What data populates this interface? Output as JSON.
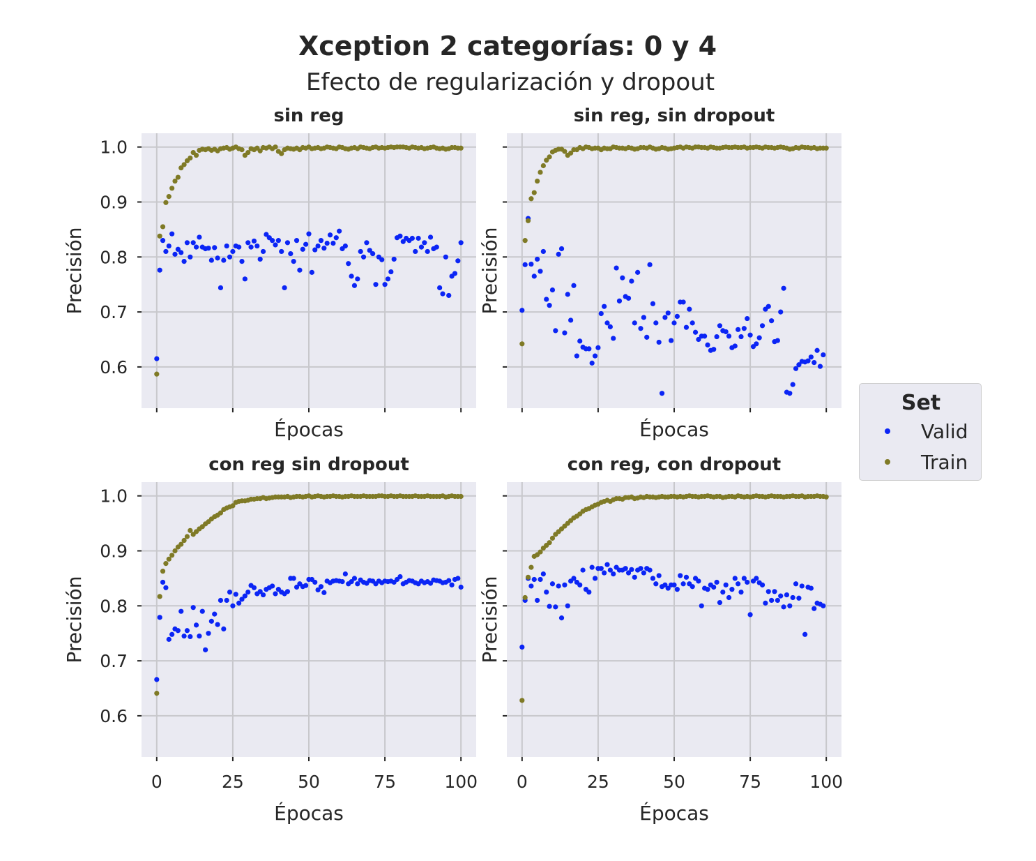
{
  "figure": {
    "title": "Xception 2 categorías: 0 y 4",
    "subtitle": "Efecto de regularización y dropout"
  },
  "legend": {
    "title": "Set",
    "items": [
      {
        "label": "Valid",
        "color": "#0b25f5"
      },
      {
        "label": "Train",
        "color": "#7f7a26"
      }
    ]
  },
  "chart_data": [
    {
      "type": "scatter",
      "title": "sin reg",
      "xlabel": "Épocas",
      "ylabel": "Precisión",
      "xlim": [
        -5,
        105
      ],
      "ylim": [
        0.525,
        1.025
      ],
      "xticks": [
        0,
        25,
        50,
        75,
        100
      ],
      "yticks": [
        0.6,
        0.7,
        0.8,
        0.9,
        1.0
      ],
      "grid": true,
      "series": [
        {
          "name": "Valid",
          "color": "#0b25f5",
          "values": [
            0.615,
            0.776,
            0.83,
            0.81,
            0.82,
            0.842,
            0.805,
            0.814,
            0.808,
            0.792,
            0.826,
            0.8,
            0.826,
            0.818,
            0.836,
            0.818,
            0.815,
            0.816,
            0.794,
            0.817,
            0.798,
            0.744,
            0.794,
            0.82,
            0.8,
            0.81,
            0.82,
            0.818,
            0.792,
            0.76,
            0.826,
            0.818,
            0.829,
            0.82,
            0.796,
            0.81,
            0.841,
            0.835,
            0.83,
            0.822,
            0.83,
            0.81,
            0.744,
            0.826,
            0.806,
            0.792,
            0.83,
            0.776,
            0.814,
            0.823,
            0.842,
            0.772,
            0.813,
            0.82,
            0.83,
            0.816,
            0.825,
            0.84,
            0.825,
            0.835,
            0.847,
            0.815,
            0.82,
            0.788,
            0.765,
            0.748,
            0.76,
            0.81,
            0.8,
            0.826,
            0.812,
            0.806,
            0.75,
            0.8,
            0.795,
            0.75,
            0.76,
            0.773,
            0.796,
            0.835,
            0.838,
            0.828,
            0.834,
            0.83,
            0.834,
            0.81,
            0.834,
            0.818,
            0.826,
            0.81,
            0.836,
            0.815,
            0.818,
            0.744,
            0.733,
            0.8,
            0.73,
            0.765,
            0.77,
            0.793,
            0.826
          ]
        },
        {
          "name": "Train",
          "color": "#7f7a26",
          "values": [
            0.587,
            0.838,
            0.855,
            0.899,
            0.91,
            0.925,
            0.938,
            0.945,
            0.962,
            0.968,
            0.975,
            0.98,
            0.99,
            0.985,
            0.994,
            0.996,
            0.995,
            0.997,
            0.994,
            0.996,
            0.993,
            0.997,
            0.998,
            0.999,
            0.996,
            0.998,
            1.0,
            0.997,
            0.995,
            0.985,
            0.99,
            0.997,
            0.995,
            0.998,
            0.993,
            0.999,
            0.998,
            1.0,
            0.997,
            1.0,
            0.992,
            0.988,
            0.995,
            0.998,
            0.997,
            0.996,
            0.998,
            0.995,
            0.999,
            0.998,
            1.0,
            0.997,
            0.998,
            0.999,
            0.997,
            0.998,
            1.0,
            0.999,
            0.998,
            0.997,
            1.0,
            0.999,
            0.997,
            0.996,
            0.998,
            0.999,
            0.997,
            1.0,
            0.999,
            0.998,
            0.997,
            0.999,
            1.0,
            0.998,
            0.999,
            0.998,
            0.999,
            1.0,
            0.999,
            1.0,
            1.0,
            1.0,
            0.999,
            0.998,
            1.0,
            0.999,
            0.998,
            0.999,
            0.997,
            0.998,
            0.999,
            1.0,
            0.998,
            0.997,
            0.998,
            0.996,
            0.997,
            0.999,
            0.999,
            0.998,
            0.998
          ]
        }
      ]
    },
    {
      "type": "scatter",
      "title": "sin reg, sin dropout",
      "xlabel": "Épocas",
      "ylabel": "Precisión",
      "xlim": [
        -5,
        105
      ],
      "ylim": [
        0.525,
        1.025
      ],
      "xticks": [
        0,
        25,
        50,
        75,
        100
      ],
      "yticks": [
        0.6,
        0.7,
        0.8,
        0.9,
        1.0
      ],
      "grid": true,
      "series": [
        {
          "name": "Valid",
          "color": "#0b25f5",
          "values": [
            0.703,
            0.786,
            0.87,
            0.787,
            0.765,
            0.796,
            0.774,
            0.81,
            0.723,
            0.712,
            0.74,
            0.666,
            0.805,
            0.815,
            0.662,
            0.732,
            0.685,
            0.748,
            0.62,
            0.647,
            0.636,
            0.633,
            0.633,
            0.607,
            0.62,
            0.635,
            0.697,
            0.71,
            0.68,
            0.673,
            0.652,
            0.78,
            0.72,
            0.762,
            0.728,
            0.725,
            0.756,
            0.68,
            0.772,
            0.67,
            0.69,
            0.654,
            0.786,
            0.715,
            0.68,
            0.645,
            0.552,
            0.69,
            0.698,
            0.648,
            0.68,
            0.692,
            0.718,
            0.718,
            0.672,
            0.705,
            0.68,
            0.663,
            0.65,
            0.656,
            0.656,
            0.64,
            0.63,
            0.632,
            0.655,
            0.675,
            0.666,
            0.664,
            0.656,
            0.635,
            0.638,
            0.668,
            0.655,
            0.67,
            0.688,
            0.658,
            0.637,
            0.642,
            0.653,
            0.675,
            0.705,
            0.71,
            0.684,
            0.646,
            0.648,
            0.7,
            0.743,
            0.554,
            0.552,
            0.568,
            0.597,
            0.604,
            0.61,
            0.609,
            0.611,
            0.618,
            0.608,
            0.63,
            0.601,
            0.622
          ]
        },
        {
          "name": "Train",
          "color": "#7f7a26",
          "values": [
            0.642,
            0.83,
            0.866,
            0.906,
            0.917,
            0.938,
            0.954,
            0.966,
            0.976,
            0.982,
            0.991,
            0.994,
            0.996,
            0.996,
            0.992,
            0.985,
            0.989,
            0.995,
            0.995,
            0.999,
            0.997,
            1.0,
            0.999,
            0.997,
            0.998,
            0.998,
            0.995,
            0.998,
            0.997,
            0.997,
            1.0,
            0.999,
            0.998,
            0.998,
            0.997,
            0.999,
            0.998,
            0.996,
            0.997,
            0.999,
            0.999,
            0.998,
            1.0,
            0.998,
            0.996,
            0.997,
            0.999,
            0.998,
            0.996,
            0.997,
            0.998,
            0.999,
            1.0,
            0.998,
            1.0,
            0.999,
            0.998,
            1.0,
            1.0,
            0.999,
            0.999,
            0.998,
            1.0,
            0.999,
            0.998,
            0.998,
            0.999,
            1.0,
            0.999,
            0.999,
            1.0,
            0.999,
            0.999,
            1.0,
            0.998,
            0.999,
            0.999,
            1.0,
            0.999,
            0.998,
            1.0,
            0.999,
            0.999,
            0.998,
            0.999,
            1.0,
            0.999,
            0.998,
            0.996,
            0.997,
            0.999,
            0.998,
            1.0,
            0.999,
            0.999,
            0.998,
            0.999,
            0.997,
            0.998,
            0.998,
            0.998
          ]
        }
      ]
    },
    {
      "type": "scatter",
      "title": "con reg sin dropout",
      "xlabel": "Épocas",
      "ylabel": "Precisión",
      "xlim": [
        -5,
        105
      ],
      "ylim": [
        0.525,
        1.025
      ],
      "xticks": [
        0,
        25,
        50,
        75,
        100
      ],
      "yticks": [
        0.6,
        0.7,
        0.8,
        0.9,
        1.0
      ],
      "grid": true,
      "series": [
        {
          "name": "Valid",
          "color": "#0b25f5",
          "values": [
            0.666,
            0.779,
            0.843,
            0.833,
            0.739,
            0.748,
            0.758,
            0.755,
            0.79,
            0.745,
            0.755,
            0.744,
            0.797,
            0.765,
            0.745,
            0.79,
            0.72,
            0.75,
            0.772,
            0.785,
            0.766,
            0.81,
            0.758,
            0.81,
            0.825,
            0.8,
            0.821,
            0.805,
            0.812,
            0.818,
            0.825,
            0.837,
            0.833,
            0.822,
            0.826,
            0.82,
            0.83,
            0.833,
            0.836,
            0.822,
            0.83,
            0.825,
            0.822,
            0.826,
            0.85,
            0.85,
            0.834,
            0.84,
            0.835,
            0.837,
            0.848,
            0.848,
            0.843,
            0.829,
            0.835,
            0.824,
            0.845,
            0.842,
            0.845,
            0.846,
            0.845,
            0.844,
            0.858,
            0.84,
            0.844,
            0.85,
            0.84,
            0.847,
            0.843,
            0.841,
            0.846,
            0.845,
            0.84,
            0.845,
            0.842,
            0.845,
            0.844,
            0.845,
            0.843,
            0.848,
            0.853,
            0.84,
            0.843,
            0.846,
            0.845,
            0.842,
            0.84,
            0.845,
            0.842,
            0.844,
            0.841,
            0.847,
            0.846,
            0.845,
            0.842,
            0.843,
            0.846,
            0.838,
            0.848,
            0.85,
            0.834
          ]
        },
        {
          "name": "Train",
          "color": "#7f7a26",
          "values": [
            0.641,
            0.817,
            0.863,
            0.877,
            0.885,
            0.892,
            0.9,
            0.907,
            0.912,
            0.919,
            0.926,
            0.937,
            0.93,
            0.935,
            0.94,
            0.944,
            0.949,
            0.953,
            0.958,
            0.962,
            0.965,
            0.969,
            0.975,
            0.978,
            0.98,
            0.982,
            0.988,
            0.99,
            0.991,
            0.991,
            0.992,
            0.994,
            0.994,
            0.995,
            0.995,
            0.997,
            0.995,
            0.996,
            0.997,
            0.998,
            0.998,
            0.998,
            0.998,
            0.999,
            0.997,
            0.998,
            0.999,
            0.999,
            0.998,
            0.999,
            1.0,
            0.998,
            0.999,
            1.0,
            0.999,
            0.998,
            0.999,
            0.999,
            1.0,
            0.999,
            0.999,
            0.998,
            0.999,
            0.999,
            1.0,
            0.999,
            0.999,
            0.999,
            1.0,
            0.999,
            0.999,
            0.999,
            0.999,
            1.0,
            1.0,
            0.999,
            0.999,
            1.0,
            0.999,
            0.999,
            1.0,
            0.999,
            0.999,
            0.999,
            0.999,
            1.0,
            0.999,
            0.999,
            0.999,
            1.0,
            0.999,
            0.999,
            0.999,
            0.999,
            1.0,
            0.998,
            0.999,
            1.0,
            0.999,
            0.999,
            0.999
          ]
        }
      ]
    },
    {
      "type": "scatter",
      "title": "con reg, con dropout",
      "xlabel": "Épocas",
      "ylabel": "Precisión",
      "xlim": [
        -5,
        105
      ],
      "ylim": [
        0.525,
        1.025
      ],
      "xticks": [
        0,
        25,
        50,
        75,
        100
      ],
      "yticks": [
        0.6,
        0.7,
        0.8,
        0.9,
        1.0
      ],
      "grid": true,
      "series": [
        {
          "name": "Valid",
          "color": "#0b25f5",
          "values": [
            0.725,
            0.81,
            0.85,
            0.836,
            0.848,
            0.81,
            0.848,
            0.858,
            0.825,
            0.799,
            0.84,
            0.798,
            0.836,
            0.778,
            0.838,
            0.8,
            0.845,
            0.85,
            0.843,
            0.838,
            0.865,
            0.83,
            0.825,
            0.87,
            0.85,
            0.868,
            0.868,
            0.86,
            0.875,
            0.865,
            0.858,
            0.87,
            0.865,
            0.865,
            0.868,
            0.86,
            0.866,
            0.852,
            0.865,
            0.868,
            0.86,
            0.868,
            0.865,
            0.85,
            0.84,
            0.855,
            0.835,
            0.838,
            0.832,
            0.838,
            0.838,
            0.83,
            0.855,
            0.84,
            0.852,
            0.84,
            0.835,
            0.85,
            0.845,
            0.8,
            0.832,
            0.83,
            0.838,
            0.834,
            0.843,
            0.806,
            0.825,
            0.838,
            0.815,
            0.83,
            0.85,
            0.84,
            0.825,
            0.85,
            0.843,
            0.784,
            0.845,
            0.85,
            0.842,
            0.838,
            0.805,
            0.826,
            0.81,
            0.826,
            0.81,
            0.818,
            0.798,
            0.82,
            0.8,
            0.815,
            0.84,
            0.814,
            0.836,
            0.748,
            0.834,
            0.832,
            0.795,
            0.805,
            0.803,
            0.8
          ]
        },
        {
          "name": "Train",
          "color": "#7f7a26",
          "values": [
            0.628,
            0.815,
            0.852,
            0.87,
            0.89,
            0.893,
            0.898,
            0.905,
            0.91,
            0.915,
            0.923,
            0.93,
            0.935,
            0.94,
            0.945,
            0.95,
            0.955,
            0.96,
            0.963,
            0.967,
            0.972,
            0.975,
            0.977,
            0.98,
            0.983,
            0.985,
            0.988,
            0.99,
            0.992,
            0.99,
            0.993,
            0.995,
            0.995,
            0.994,
            0.997,
            0.997,
            0.998,
            0.995,
            0.996,
            0.998,
            0.997,
            0.999,
            0.998,
            0.998,
            0.997,
            0.998,
            0.999,
            0.998,
            0.998,
            0.999,
            0.999,
            0.998,
            0.999,
            0.998,
            0.999,
            1.0,
            0.999,
            0.999,
            0.998,
            0.999,
            0.999,
            1.0,
            0.999,
            0.998,
            0.999,
            0.999,
            0.997,
            0.998,
            0.999,
            0.999,
            0.998,
            1.0,
            0.999,
            0.998,
            0.999,
            0.998,
            0.999,
            1.0,
            0.999,
            0.999,
            0.998,
            0.999,
            1.0,
            0.999,
            0.999,
            0.999,
            0.998,
            0.999,
            0.999,
            1.0,
            0.999,
            0.999,
            1.0,
            0.998,
            0.999,
            0.999,
            0.999,
            1.0,
            0.999,
            0.999,
            0.998
          ]
        }
      ]
    }
  ]
}
